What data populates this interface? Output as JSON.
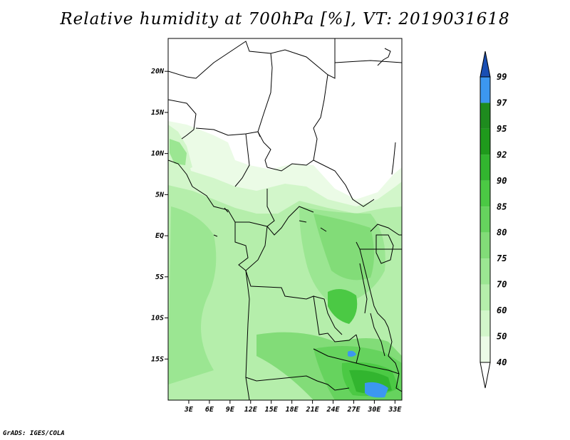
{
  "title": "Relative humidity at 700hPa [%], VT: 2019031618",
  "credit": "GrADS: IGES/COLA",
  "map": {
    "lon_range": [
      0,
      34
    ],
    "lat_range": [
      -20,
      24
    ],
    "lat_ticks": [
      {
        "value": 20,
        "label": "20N"
      },
      {
        "value": 15,
        "label": "15N"
      },
      {
        "value": 10,
        "label": "10N"
      },
      {
        "value": 5,
        "label": "5N"
      },
      {
        "value": 0,
        "label": "EQ"
      },
      {
        "value": -5,
        "label": "5S"
      },
      {
        "value": -10,
        "label": "10S"
      },
      {
        "value": -15,
        "label": "15S"
      }
    ],
    "lon_ticks": [
      {
        "value": 3,
        "label": "3E"
      },
      {
        "value": 6,
        "label": "6E"
      },
      {
        "value": 9,
        "label": "9E"
      },
      {
        "value": 12,
        "label": "12E"
      },
      {
        "value": 15,
        "label": "15E"
      },
      {
        "value": 18,
        "label": "18E"
      },
      {
        "value": 21,
        "label": "21E"
      },
      {
        "value": 24,
        "label": "24E"
      },
      {
        "value": 27,
        "label": "27E"
      },
      {
        "value": 30,
        "label": "30E"
      },
      {
        "value": 33,
        "label": "33E"
      }
    ]
  },
  "colorbar": {
    "levels": [
      "40",
      "50",
      "60",
      "70",
      "75",
      "80",
      "85",
      "90",
      "92",
      "95",
      "97",
      "99"
    ],
    "colors": [
      "#ebfbe6",
      "#d2f6ca",
      "#b5eeab",
      "#9be692",
      "#82dc78",
      "#66d35e",
      "#4bc944",
      "#32b52f",
      "#1f9a1c",
      "#1e8b1e",
      "#3c97f0",
      "#1f6ed6",
      "#1a4fb3"
    ]
  }
}
